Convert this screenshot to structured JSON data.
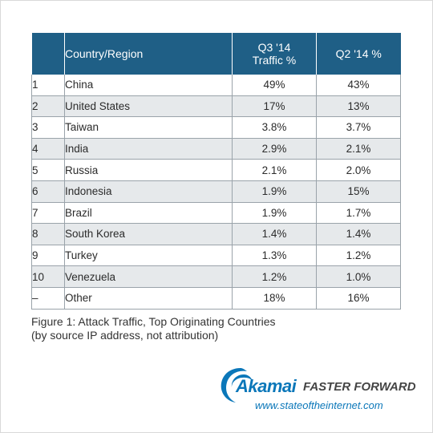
{
  "chart_data": {
    "type": "table",
    "columns": [
      "",
      "Country/Region",
      "Q3 '14 Traffic %",
      "Q2 '14 %"
    ],
    "header": {
      "country": "Country/Region",
      "q3_line1": "Q3 '14",
      "q3_line2": "Traffic %",
      "q2": "Q2 '14 %"
    },
    "rows": [
      {
        "rank": "1",
        "country": "China",
        "q3": "49%",
        "q2": "43%"
      },
      {
        "rank": "2",
        "country": "United States",
        "q3": "17%",
        "q2": "13%"
      },
      {
        "rank": "3",
        "country": "Taiwan",
        "q3": "3.8%",
        "q2": "3.7%"
      },
      {
        "rank": "4",
        "country": "India",
        "q3": "2.9%",
        "q2": "2.1%"
      },
      {
        "rank": "5",
        "country": "Russia",
        "q3": "2.1%",
        "q2": "2.0%"
      },
      {
        "rank": "6",
        "country": "Indonesia",
        "q3": "1.9%",
        "q2": "15%"
      },
      {
        "rank": "7",
        "country": "Brazil",
        "q3": "1.9%",
        "q2": "1.7%"
      },
      {
        "rank": "8",
        "country": "South Korea",
        "q3": "1.4%",
        "q2": "1.4%"
      },
      {
        "rank": "9",
        "country": "Turkey",
        "q3": "1.3%",
        "q2": "1.2%"
      },
      {
        "rank": "10",
        "country": "Venezuela",
        "q3": "1.2%",
        "q2": "1.0%"
      },
      {
        "rank": "–",
        "country": "Other",
        "q3": "18%",
        "q2": "16%"
      }
    ]
  },
  "caption": {
    "line1": "Figure 1: Attack Traffic, Top Originating Countries",
    "line2": "(by source IP address, not attribution)"
  },
  "branding": {
    "logo_text": "Akamai",
    "tagline": "FASTER FORWARD",
    "url": "www.stateoftheinternet.com",
    "brand_color": "#0b77b9",
    "header_color": "#1f5f86",
    "shade_color": "#e6e9eb"
  }
}
